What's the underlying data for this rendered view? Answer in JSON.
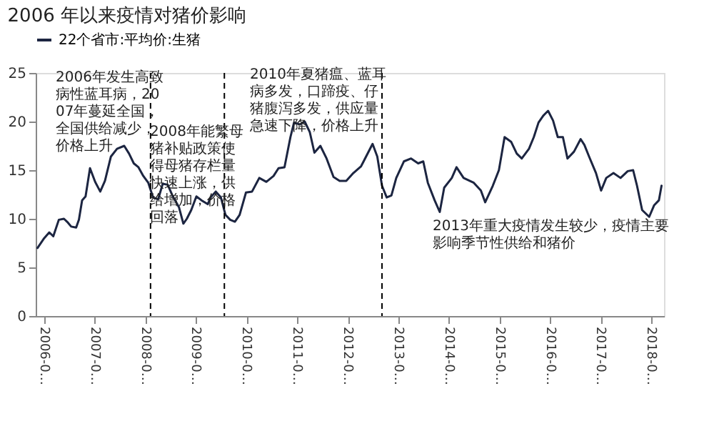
{
  "chart_data": {
    "type": "line",
    "title": "2006 年以来疫情对猪价影响",
    "legend": "top",
    "line_style": "solid",
    "marker": "none",
    "grid": false,
    "x": [
      "2006-05-14",
      "2006-07-01",
      "2006-08-07",
      "2006-09-05",
      "2006-10-15",
      "2006-11-21",
      "2006-12-20",
      "2007-01-12",
      "2007-02-17",
      "2007-03-09",
      "2007-04-01",
      "2007-04-26",
      "2007-05-28",
      "2007-07-04",
      "2007-08-10",
      "2007-09-13",
      "2007-10-26",
      "2007-12-09",
      "2008-01-30",
      "2008-03-05",
      "2008-04-08",
      "2008-05-12",
      "2008-06-16",
      "2008-07-22",
      "2008-08-25",
      "2008-10-01",
      "2008-11-03",
      "2008-12-09",
      "2009-01-12",
      "2009-02-28",
      "2009-04-01",
      "2009-04-26",
      "2009-05-28",
      "2009-07-04",
      "2009-08-10",
      "2009-09-24",
      "2009-10-15",
      "2009-11-21",
      "2009-12-28",
      "2010-01-30",
      "2010-03-05",
      "2010-04-08",
      "2010-05-12",
      "2010-06-27",
      "2010-08-10",
      "2010-10-01",
      "2010-11-21",
      "2011-01-12",
      "2011-02-17",
      "2011-04-01",
      "2011-05-14",
      "2011-06-09",
      "2011-07-22",
      "2011-08-25",
      "2011-10-01",
      "2011-11-03",
      "2011-12-16",
      "2012-01-30",
      "2012-03-20",
      "2012-05-03",
      "2012-06-20",
      "2012-08-10",
      "2012-10-05",
      "2012-12-27",
      "2013-01-30",
      "2013-03-05",
      "2013-04-08",
      "2013-05-12",
      "2013-06-16",
      "2013-08-10",
      "2013-10-01",
      "2013-11-21",
      "2013-12-28",
      "2014-01-30",
      "2014-03-20",
      "2014-04-26",
      "2014-05-28",
      "2014-07-22",
      "2014-08-25",
      "2014-10-15",
      "2014-12-28",
      "2015-02-17",
      "2015-03-20",
      "2015-05-14",
      "2015-06-27",
      "2015-08-07",
      "2015-09-24",
      "2015-11-03",
      "2015-12-09",
      "2016-01-30",
      "2016-03-05",
      "2016-04-08",
      "2016-05-12",
      "2016-06-16",
      "2016-07-22",
      "2016-08-25",
      "2016-10-01",
      "2016-11-03",
      "2016-12-20",
      "2017-02-06",
      "2017-03-05",
      "2017-04-08",
      "2017-05-28",
      "2017-07-04",
      "2017-08-10",
      "2017-10-01",
      "2017-11-21",
      "2018-01-12",
      "2018-02-20",
      "2018-03-20",
      "2018-04-26",
      "2018-06-16",
      "2018-07-22",
      "2018-08-25",
      "2018-09-13"
    ],
    "series": [
      {
        "name": "22个省市:平均价:生猪",
        "color": "#1c2541",
        "values": [
          7.0,
          8.0,
          8.6,
          8.2,
          9.9,
          10.0,
          9.6,
          9.2,
          9.1,
          9.9,
          11.9,
          12.3,
          15.2,
          13.8,
          12.8,
          13.9,
          16.4,
          17.2,
          17.5,
          16.7,
          15.7,
          15.3,
          14.4,
          13.7,
          12.2,
          12.0,
          13.6,
          13.5,
          12.4,
          11.2,
          9.5,
          10.0,
          10.9,
          12.3,
          11.9,
          11.5,
          12.2,
          12.8,
          12.2,
          10.4,
          9.9,
          9.7,
          10.4,
          12.7,
          12.8,
          14.2,
          13.8,
          14.4,
          15.2,
          15.3,
          18.4,
          19.9,
          19.7,
          20.0,
          18.9,
          16.8,
          17.5,
          16.2,
          14.3,
          13.9,
          13.9,
          14.7,
          15.4,
          17.7,
          16.4,
          13.4,
          12.2,
          12.4,
          14.2,
          15.9,
          16.2,
          15.7,
          15.9,
          13.7,
          11.9,
          10.7,
          13.2,
          14.2,
          15.3,
          14.2,
          13.7,
          12.9,
          11.7,
          13.4,
          15.0,
          18.4,
          17.9,
          16.7,
          16.2,
          17.2,
          18.4,
          19.9,
          20.6,
          21.1,
          20.1,
          18.4,
          18.4,
          16.2,
          16.9,
          18.2,
          17.6,
          16.4,
          14.7,
          12.9,
          14.2,
          14.7,
          14.2,
          14.9,
          15.0,
          13.4,
          10.9,
          10.2,
          11.4,
          11.9,
          13.4
        ]
      }
    ],
    "xlim": [
      "2006-05-01",
      "2018-10-01"
    ],
    "xticks": [
      {
        "value": "2006-07-01",
        "label": "2006-0…"
      },
      {
        "value": "2007-07-01",
        "label": "2007-0…"
      },
      {
        "value": "2008-07-01",
        "label": "2008-0…"
      },
      {
        "value": "2009-07-01",
        "label": "2009-0…"
      },
      {
        "value": "2010-07-01",
        "label": "2010-0…"
      },
      {
        "value": "2011-07-01",
        "label": "2011-0…"
      },
      {
        "value": "2012-07-01",
        "label": "2012-0…"
      },
      {
        "value": "2013-07-01",
        "label": "2013-0…"
      },
      {
        "value": "2014-07-01",
        "label": "2014-0…"
      },
      {
        "value": "2015-07-01",
        "label": "2015-0…"
      },
      {
        "value": "2016-07-01",
        "label": "2016-0…"
      },
      {
        "value": "2017-07-01",
        "label": "2017-0…"
      },
      {
        "value": "2018-07-01",
        "label": "2018-0…"
      }
    ],
    "ylim": [
      0,
      25
    ],
    "yticks": [
      0,
      5,
      10,
      15,
      20,
      25
    ],
    "ref_lines": [
      {
        "axis": "x",
        "value": "2008-08-07",
        "color": "#000000",
        "line_style": "dashed"
      },
      {
        "axis": "x",
        "value": "2010-01-22",
        "color": "#000000",
        "line_style": "dashed"
      },
      {
        "axis": "x",
        "value": "2013-03-05",
        "color": "#000000",
        "line_style": "dashed"
      }
    ],
    "annotations": [
      "2006年发生高致病性蓝耳病，2007年蔓延全国，全国供给减少，价格上升",
      "2008年能繁母猪补贴政策使得母猪存栏量快速上涨，供给增加，价格回落",
      "2010年夏猪瘟、蓝耳病多发，口蹄疫、仔猪腹泻多发，供应量急速下降，价格上升",
      "2013年重大疫情发生较少，疫情主要影响季节性供给和猪价"
    ]
  }
}
